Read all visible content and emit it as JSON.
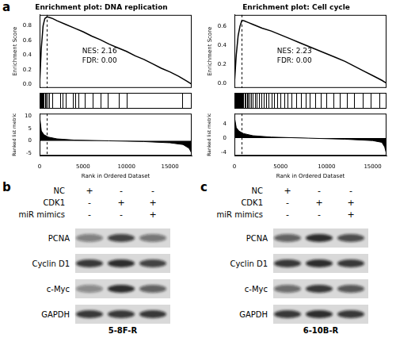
{
  "panel_a": {
    "label": "a"
  },
  "chart_data": [
    {
      "type": "line",
      "title": "Enrichment plot: DNA replication",
      "x_label": "Rank in Ordered Dataset",
      "y_label": "Enrichment Score",
      "color": "#000000",
      "grid": false,
      "x": [
        0,
        200,
        400,
        600,
        800,
        1000,
        1500,
        2000,
        3000,
        4000,
        5000,
        6000,
        7000,
        8000,
        9000,
        10000,
        11000,
        12000,
        13000,
        14000,
        15000,
        16000,
        17000,
        17500
      ],
      "values": [
        0,
        0.5,
        0.8,
        0.9,
        0.92,
        0.92,
        0.9,
        0.87,
        0.82,
        0.77,
        0.72,
        0.66,
        0.61,
        0.55,
        0.5,
        0.45,
        0.39,
        0.34,
        0.28,
        0.22,
        0.17,
        0.11,
        0.04,
        0
      ],
      "xlim": [
        0,
        17500
      ],
      "xticks": [
        0,
        5000,
        10000,
        15000
      ],
      "ylim": [
        -0.05,
        0.95
      ],
      "yticks": [
        {
          "value": 0,
          "label": "0.0"
        },
        {
          "value": 0.2,
          "label": "0.2"
        },
        {
          "value": 0.4,
          "label": "0.4"
        },
        {
          "value": 0.6,
          "label": "0.6"
        },
        {
          "value": 0.8,
          "label": "0.8"
        }
      ],
      "peak": 800,
      "annotations": [
        "NES: 2.16",
        "FDR: 0.00"
      ],
      "hits": [
        50,
        80,
        120,
        150,
        200,
        250,
        300,
        350,
        400,
        450,
        500,
        600,
        700,
        900,
        1100,
        1500,
        2400,
        2600,
        3000,
        3800,
        4100,
        4500,
        5200,
        6100,
        7000,
        7800,
        9100,
        10000,
        16400
      ],
      "metric": {
        "label": "Ranked list metric",
        "x": [
          0,
          200,
          500,
          1000,
          2000,
          4000,
          8000,
          12000,
          15000,
          16500,
          17200,
          17500
        ],
        "values": [
          10,
          4,
          2.5,
          1.5,
          0.8,
          0.3,
          0,
          -0.3,
          -0.8,
          -1.5,
          -3,
          -5
        ],
        "ylim": [
          -6,
          11
        ],
        "yticks": [
          -5,
          0,
          5,
          10
        ]
      }
    },
    {
      "type": "line",
      "title": "Enrichment plot: Cell cycle",
      "x_label": "Rank in Ordered Dataset",
      "y_label": "Enrichment Score",
      "color": "#000000",
      "grid": false,
      "x": [
        0,
        200,
        400,
        600,
        800,
        1000,
        1500,
        2000,
        3000,
        4000,
        5000,
        6000,
        7000,
        8000,
        9000,
        10000,
        11000,
        12000,
        13000,
        14000,
        15000,
        16000,
        16500
      ],
      "values": [
        0,
        0.3,
        0.5,
        0.6,
        0.66,
        0.66,
        0.64,
        0.62,
        0.58,
        0.55,
        0.51,
        0.47,
        0.43,
        0.39,
        0.35,
        0.31,
        0.27,
        0.23,
        0.18,
        0.13,
        0.08,
        0.03,
        0
      ],
      "xlim": [
        0,
        16500
      ],
      "xticks": [
        0,
        5000,
        10000,
        15000
      ],
      "ylim": [
        -0.05,
        0.72
      ],
      "yticks": [
        {
          "value": 0,
          "label": "0.0"
        },
        {
          "value": 0.2,
          "label": "0.2"
        },
        {
          "value": 0.4,
          "label": "0.4"
        },
        {
          "value": 0.6,
          "label": "0.6"
        }
      ],
      "peak": 800,
      "annotations": [
        "NES: 2.23",
        "FDR: 0.00"
      ],
      "hits": [
        20,
        40,
        60,
        90,
        120,
        150,
        180,
        210,
        250,
        280,
        320,
        360,
        400,
        440,
        480,
        520,
        560,
        600,
        650,
        700,
        760,
        820,
        900,
        980,
        1100,
        1200,
        1350,
        1500,
        1650,
        1800,
        2000,
        2200,
        2400,
        2650,
        2900,
        3150,
        3400,
        3700,
        4000,
        4300,
        4600,
        5000,
        5400,
        5800,
        6200,
        6700,
        7200,
        7700,
        8200,
        8800,
        9400,
        10000,
        10700,
        11400,
        12200,
        13000,
        13900,
        14800,
        15700
      ],
      "metric": {
        "label": "Ranked list metric",
        "x": [
          0,
          200,
          500,
          1000,
          2000,
          4000,
          8000,
          12000,
          15000,
          16000,
          16300,
          16500
        ],
        "values": [
          6,
          3,
          2,
          1.3,
          0.7,
          0.3,
          0,
          -0.3,
          -0.7,
          -1.2,
          -2.5,
          -4.5
        ],
        "ylim": [
          -5,
          7
        ],
        "yticks": [
          -4,
          0,
          4
        ]
      }
    }
  ],
  "blots": [
    {
      "label": "b",
      "caption": "5-8F-R",
      "conditions": [
        {
          "name": "NC",
          "signs": [
            "+",
            "-",
            "-"
          ]
        },
        {
          "name": "CDK1",
          "signs": [
            "-",
            "+",
            "+"
          ]
        },
        {
          "name": "miR mimics",
          "signs": [
            "-",
            "-",
            "+"
          ]
        }
      ],
      "proteins": [
        {
          "name": "PCNA",
          "intensity": [
            0.45,
            0.75,
            0.5
          ]
        },
        {
          "name": "Cyclin D1",
          "intensity": [
            0.8,
            0.85,
            0.75
          ]
        },
        {
          "name": "c-Myc",
          "intensity": [
            0.4,
            0.85,
            0.6
          ]
        },
        {
          "name": "GAPDH",
          "intensity": [
            0.8,
            0.8,
            0.8
          ]
        }
      ]
    },
    {
      "label": "c",
      "caption": "6-10B-R",
      "conditions": [
        {
          "name": "NC",
          "signs": [
            "+",
            "-",
            "-"
          ]
        },
        {
          "name": "CDK1",
          "signs": [
            "-",
            "+",
            "+"
          ]
        },
        {
          "name": "miR mimics",
          "signs": [
            "-",
            "-",
            "+"
          ]
        }
      ],
      "proteins": [
        {
          "name": "PCNA",
          "intensity": [
            0.6,
            0.85,
            0.7
          ]
        },
        {
          "name": "Cyclin D1",
          "intensity": [
            0.8,
            0.85,
            0.8
          ]
        },
        {
          "name": "c-Myc",
          "intensity": [
            0.55,
            0.8,
            0.65
          ]
        },
        {
          "name": "GAPDH",
          "intensity": [
            0.8,
            0.85,
            0.8
          ]
        }
      ]
    }
  ]
}
